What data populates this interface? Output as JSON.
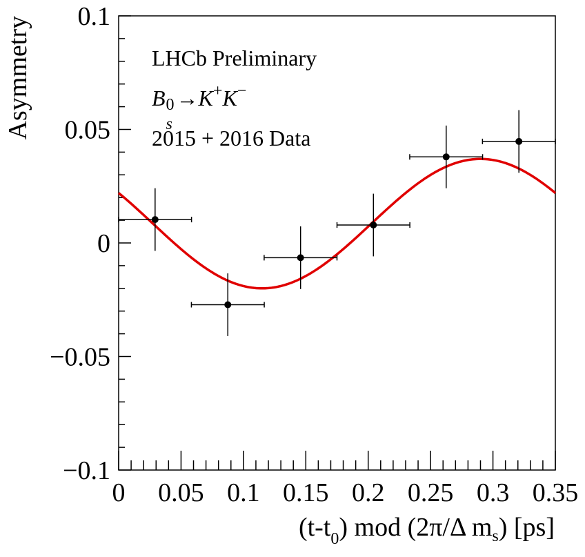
{
  "chart_data": {
    "type": "scatter",
    "xlabel_parts": [
      "(t-t",
      "0",
      ") mod (2π/Δ m",
      "s",
      ") [ps]"
    ],
    "ylabel": "Asymmetry",
    "xlim": [
      0,
      0.35
    ],
    "ylim": [
      -0.1,
      0.1
    ],
    "xticks": [
      0,
      0.05,
      0.1,
      0.15,
      0.2,
      0.25,
      0.3,
      0.35
    ],
    "xtick_labels": [
      "0",
      "0.05",
      "0.1",
      "0.15",
      "0.2",
      "0.25",
      "0.3",
      "0.35"
    ],
    "yticks": [
      -0.1,
      -0.05,
      0,
      0.05,
      0.1
    ],
    "ytick_labels": [
      "−0.1",
      "−0.05",
      "0",
      "0.05",
      "0.1"
    ],
    "annotations": {
      "line1": "LHCb Preliminary",
      "decay": {
        "b": "B",
        "b_sub": "s",
        "b_sup": "0",
        "arrow": "→",
        "k": "K",
        "plus": "+",
        "minus": "−"
      },
      "line3": "2015 + 2016 Data"
    },
    "points": {
      "x": [
        0.0292,
        0.0875,
        0.1458,
        0.2042,
        0.2625,
        0.3208
      ],
      "xerr": [
        0.0292,
        0.0292,
        0.0292,
        0.0292,
        0.0292,
        0.0292
      ],
      "y": [
        0.0103,
        -0.0272,
        -0.0065,
        0.0079,
        0.0379,
        0.0447
      ],
      "yerr": [
        0.0138,
        0.0138,
        0.0138,
        0.0138,
        0.0138,
        0.0138
      ],
      "color": "#000000"
    },
    "fit": {
      "color": "#e00000",
      "form": "offset + amplitude * sin(2*pi*(x - x_zero)/period)",
      "offset": 0.0085,
      "amplitude": 0.0285,
      "period": 0.35,
      "x_zero": 0.2025
    },
    "grid": false
  }
}
